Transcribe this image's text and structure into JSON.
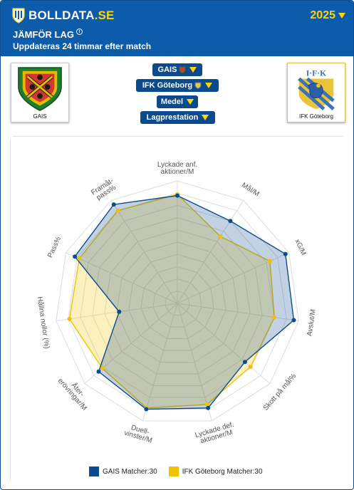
{
  "header": {
    "brand_main": "BOLLDATA",
    "brand_suffix": ".SE",
    "year": "2025",
    "title": "JÄMFÖR LAG",
    "info_symbol": "i",
    "subtitle": "Uppdateras 24 timmar efter match"
  },
  "teams": {
    "left": {
      "name": "GAIS"
    },
    "right": {
      "name": "IFK Göteborg"
    }
  },
  "selectors": {
    "team1": "GAIS",
    "team2": "IFK Göteborg",
    "aggregation": "Medel",
    "category": "Lagprestation"
  },
  "icons": {
    "brand": "shield-logo-icon",
    "dropdown": "caret-down-icon",
    "info": "info-icon"
  },
  "colors": {
    "header_bg": "#0d5cab",
    "accent": "#ffd400",
    "series_gais": "#0c4a8e",
    "series_ifk": "#f2c200"
  },
  "chart_data": {
    "type": "radar",
    "axes": [
      "Lyckade anf. aktioner/M",
      "Mål/M",
      "xG/M",
      "Avslut/M",
      "Skott på mål%",
      "Lyckade def. aktioner/M",
      "Duell-vinster/M",
      "Åter-erövringar/M",
      "Hållna nollor (%)",
      "Pass%",
      "Framåt-pass%"
    ],
    "axis_label_lines": [
      [
        "Lyckade anf.",
        "aktioner/M"
      ],
      [
        "Mål/M"
      ],
      [
        "xG/M"
      ],
      [
        "Avslut/M"
      ],
      [
        "Skott på mål%"
      ],
      [
        "Lyckade def.",
        "aktioner/M"
      ],
      [
        "Duell-",
        "vinster/M"
      ],
      [
        "Åter-",
        "erövringar/M"
      ],
      [
        "Hållna nollor (%)"
      ],
      [
        "Pass%"
      ],
      [
        "Framåt-",
        "pass%"
      ]
    ],
    "range": [
      0,
      1
    ],
    "rings": 10,
    "series": [
      {
        "name": "GAIS",
        "matches": 30,
        "values": [
          0.88,
          0.8,
          0.97,
          0.96,
          0.73,
          0.89,
          0.9,
          0.85,
          0.48,
          0.92,
          0.96
        ]
      },
      {
        "name": "IFK Göteborg",
        "matches": 30,
        "values": [
          0.89,
          0.65,
          0.83,
          0.8,
          0.79,
          0.86,
          0.89,
          0.81,
          0.89,
          0.88,
          0.9
        ]
      }
    ],
    "legend": [
      {
        "label": "GAIS Matcher:30"
      },
      {
        "label": "IFK Göteborg Matcher:30"
      }
    ],
    "legend_position": "bottom",
    "grid": true
  }
}
